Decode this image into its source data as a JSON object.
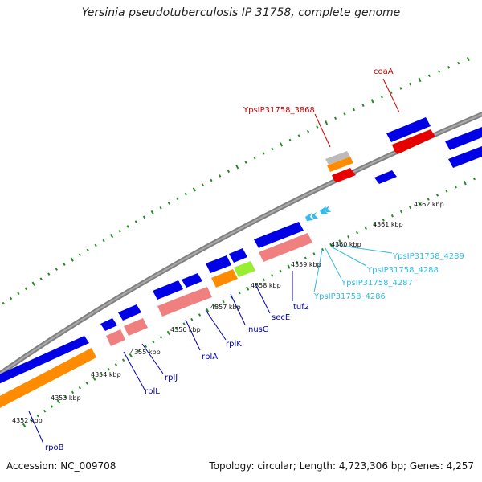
{
  "title": "Yersinia pseudotuberculosis IP 31758, complete genome",
  "footer": {
    "accession": "Accession: NC_009708",
    "summary": "Topology: circular; Length: 4,723,306 bp; Genes: 4,257"
  },
  "colors": {
    "gene": "#0000e6",
    "cds_red": "#e60000",
    "cds_orange": "#ff8c00",
    "rrna_pink": "#f08080",
    "green": "#99ee33",
    "grey": "#bbbbbb",
    "trna_cyan": "#33bbee",
    "backbone": "#808080",
    "tick": "#228b22",
    "label_blue": "#0000aa",
    "label_red": "#cc0000",
    "label_cyan": "#33bbdd"
  },
  "kbp_labels": [
    "4352 kbp",
    "4353 kbp",
    "4354 kbp",
    "4355 kbp",
    "4356 kbp",
    "4357 kbp",
    "4358 kbp",
    "4359 kbp",
    "4360 kbp",
    "4361 kbp",
    "4362 kbp"
  ],
  "gene_labels": [
    {
      "id": "rpoB",
      "text": "rpoB",
      "color": "blue"
    },
    {
      "id": "rplL",
      "text": "rplL",
      "color": "blue"
    },
    {
      "id": "rplJ",
      "text": "rplJ",
      "color": "blue"
    },
    {
      "id": "rplA",
      "text": "rplA",
      "color": "blue"
    },
    {
      "id": "rplK",
      "text": "rplK",
      "color": "blue"
    },
    {
      "id": "nusG",
      "text": "nusG",
      "color": "blue"
    },
    {
      "id": "secE",
      "text": "secE",
      "color": "blue"
    },
    {
      "id": "tuf2",
      "text": "tuf2",
      "color": "blue"
    },
    {
      "id": "t4286",
      "text": "YpsIP31758_4286",
      "color": "cyan"
    },
    {
      "id": "t4287",
      "text": "YpsIP31758_4287",
      "color": "cyan"
    },
    {
      "id": "t4288",
      "text": "YpsIP31758_4288",
      "color": "cyan"
    },
    {
      "id": "t4289",
      "text": "YpsIP31758_4289",
      "color": "cyan"
    },
    {
      "id": "g3868",
      "text": "YpsIP31758_3868",
      "color": "red"
    },
    {
      "id": "coaA",
      "text": "coaA",
      "color": "red"
    }
  ]
}
